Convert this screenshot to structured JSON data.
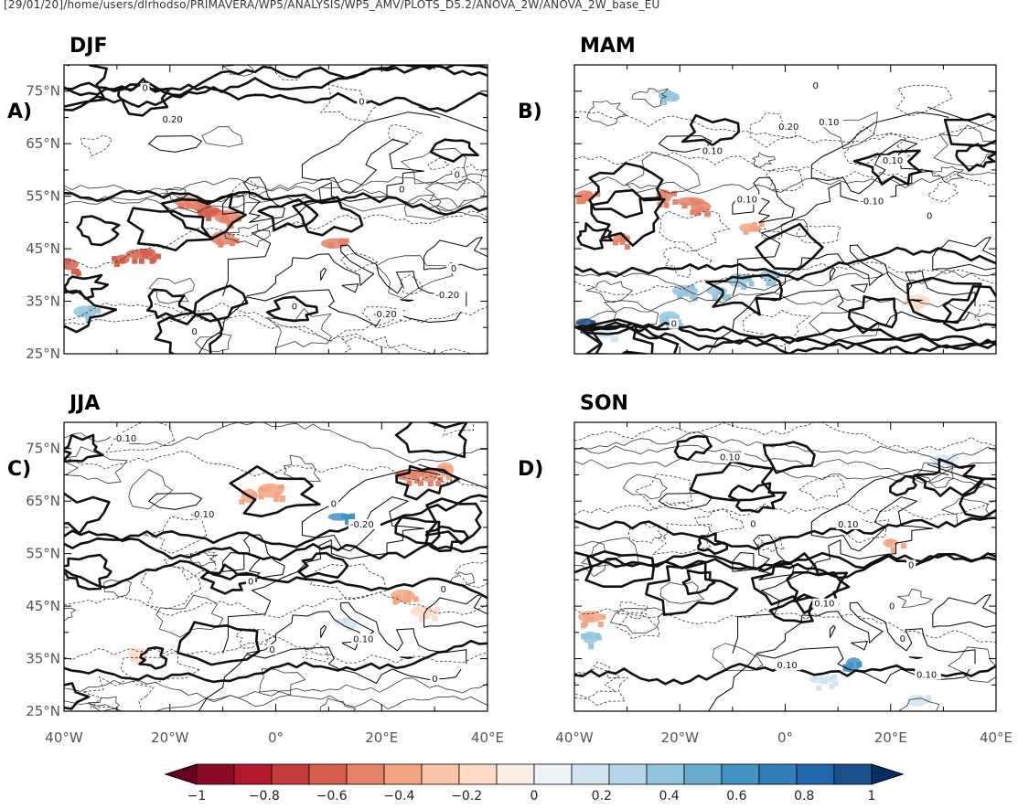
{
  "header": {
    "path": "[29/01/20]/home/users/dlrhodso/PRIMAVERA/WP5/ANALYSIS/WP5_AMV/PLOTS_D5.2/ANOVA_2W/ANOVA_2W_base_EU"
  },
  "panels": [
    {
      "id": "A",
      "season": "DJF",
      "letter": "A)",
      "contour_labels": [
        "0",
        "-0.20",
        "0",
        "0",
        "0.20",
        "-0.20",
        "0",
        "0",
        "0",
        "0",
        "0"
      ],
      "shading": [
        {
          "lon": -14,
          "lat": 53,
          "v": -0.6
        },
        {
          "lon": -12,
          "lat": 52,
          "v": -0.6
        },
        {
          "lon": -9,
          "lat": 51,
          "v": -0.4
        },
        {
          "lon": -26,
          "lat": 44,
          "v": -0.6
        },
        {
          "lon": -29,
          "lat": 43,
          "v": -0.6
        },
        {
          "lon": -24,
          "lat": 44,
          "v": -0.6
        },
        {
          "lon": -36,
          "lat": 33,
          "v": 0.4
        },
        {
          "lon": -10,
          "lat": 47,
          "v": -0.5
        },
        {
          "lon": 11,
          "lat": 46,
          "v": -0.5
        },
        {
          "lon": -39,
          "lat": 42,
          "v": -0.6
        },
        {
          "lon": -17,
          "lat": 54,
          "v": -0.4
        }
      ]
    },
    {
      "id": "B",
      "season": "MAM",
      "letter": "B)",
      "contour_labels": [
        "0.10",
        "0.10",
        "0.10",
        "-0.10",
        "0.20",
        "0",
        "0.10",
        "0",
        "0"
      ],
      "shading": [
        {
          "lon": -38,
          "lat": 55,
          "v": -0.4
        },
        {
          "lon": -31,
          "lat": 47,
          "v": -0.4
        },
        {
          "lon": -23,
          "lat": 55,
          "v": -0.4
        },
        {
          "lon": -18,
          "lat": 54,
          "v": -0.4
        },
        {
          "lon": -16,
          "lat": 53,
          "v": -0.4
        },
        {
          "lon": -19,
          "lat": 37,
          "v": 0.4
        },
        {
          "lon": -13,
          "lat": 37,
          "v": 0.4
        },
        {
          "lon": -9,
          "lat": 39,
          "v": 0.4
        },
        {
          "lon": -38,
          "lat": 31,
          "v": 0.8
        },
        {
          "lon": -34,
          "lat": 29,
          "v": 0.2
        },
        {
          "lon": -22,
          "lat": 32,
          "v": 0.3
        },
        {
          "lon": 25,
          "lat": 35,
          "v": -0.2
        },
        {
          "lon": -22,
          "lat": 74,
          "v": 0.3
        },
        {
          "lon": -7,
          "lat": 49,
          "v": -0.3
        },
        {
          "lon": -3,
          "lat": 40,
          "v": 0.3
        }
      ]
    },
    {
      "id": "C",
      "season": "JJA",
      "letter": "C)",
      "contour_labels": [
        "-0.10",
        "0",
        "-0.10",
        "-0.20",
        "0.10",
        "0",
        "0",
        "0",
        "0"
      ],
      "shading": [
        {
          "lon": -5,
          "lat": 66,
          "v": -0.3
        },
        {
          "lon": -1,
          "lat": 67,
          "v": -0.3
        },
        {
          "lon": 25,
          "lat": 70,
          "v": -0.4
        },
        {
          "lon": 29,
          "lat": 70,
          "v": -0.4
        },
        {
          "lon": 32,
          "lat": 71,
          "v": -0.3
        },
        {
          "lon": 12,
          "lat": 62,
          "v": 0.5
        },
        {
          "lon": 28,
          "lat": 44,
          "v": -0.2
        },
        {
          "lon": 24,
          "lat": 47,
          "v": -0.3
        },
        {
          "lon": -26,
          "lat": 36,
          "v": -0.2
        },
        {
          "lon": 13,
          "lat": 42,
          "v": 0.1
        }
      ]
    },
    {
      "id": "D",
      "season": "SON",
      "letter": "D)",
      "contour_labels": [
        "0.10",
        "0.10",
        "0.10",
        "0.10",
        "0.10",
        "0",
        "0",
        "0",
        "0"
      ],
      "shading": [
        {
          "lon": 13,
          "lat": 34,
          "v": 0.5
        },
        {
          "lon": -37,
          "lat": 39,
          "v": 0.4
        },
        {
          "lon": -37,
          "lat": 43,
          "v": -0.3
        },
        {
          "lon": 30,
          "lat": 73,
          "v": 0.2
        },
        {
          "lon": 7,
          "lat": 31,
          "v": 0.2
        },
        {
          "lon": 20,
          "lat": 57,
          "v": -0.3
        },
        {
          "lon": 25,
          "lat": 27,
          "v": 0.15
        }
      ]
    }
  ],
  "axes": {
    "lat_ticks": [
      "25°N",
      "35°N",
      "45°N",
      "55°N",
      "65°N",
      "75°N"
    ],
    "lon_ticks": [
      "40°W",
      "20°W",
      "0°",
      "20°E",
      "40°E"
    ]
  },
  "colorbar": {
    "tick_labels": [
      "−1",
      "−0.8",
      "−0.6",
      "−0.4",
      "−0.2",
      "0",
      "0.2",
      "0.4",
      "0.6",
      "0.8",
      "1"
    ],
    "colors": [
      "#67001f",
      "#8b0a26",
      "#b2182b",
      "#c43c3c",
      "#d6604d",
      "#e58267",
      "#f4a582",
      "#f9c4a9",
      "#fddbc7",
      "#fbeee6",
      "#eef4f7",
      "#d1e5f0",
      "#b6d6e8",
      "#92c5de",
      "#6aaccf",
      "#4393c3",
      "#327cb7",
      "#2166ac",
      "#18508b",
      "#053061"
    ]
  },
  "style": {
    "land_contour": "#111111",
    "thin_contour": "#222222",
    "frame": "#000000"
  }
}
